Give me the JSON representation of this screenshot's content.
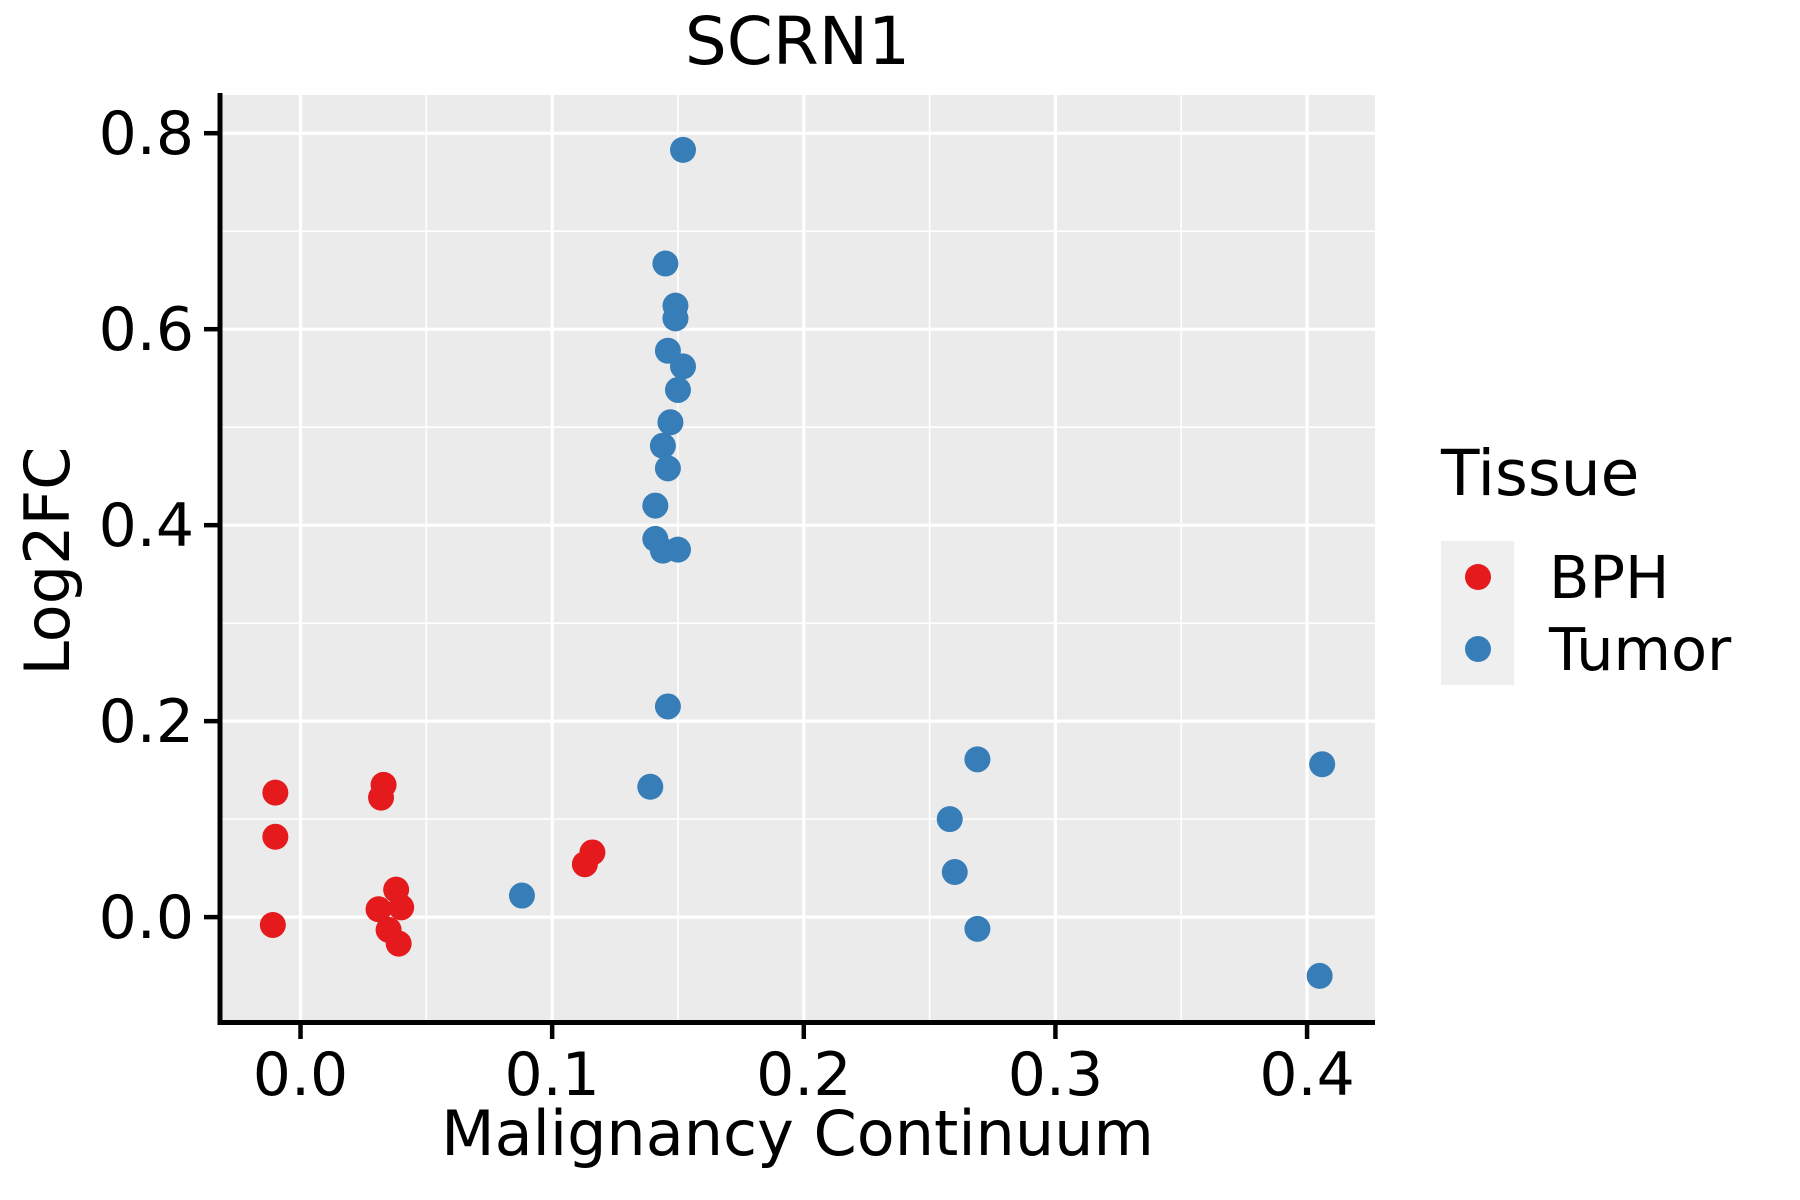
{
  "title": "SCRN1",
  "axes": {
    "x": {
      "label": "Malignancy Continuum",
      "tick_labels": [
        "0.0",
        "0.1",
        "0.2",
        "0.3",
        "0.4"
      ],
      "ticks": [
        0.0,
        0.1,
        0.2,
        0.3,
        0.4
      ],
      "minor_ticks": [
        0.05,
        0.15,
        0.25,
        0.35
      ]
    },
    "y": {
      "label": "Log2FC",
      "tick_labels": [
        "0.0",
        "0.2",
        "0.4",
        "0.6",
        "0.8"
      ],
      "ticks": [
        0.0,
        0.2,
        0.4,
        0.6,
        0.8
      ],
      "minor_ticks": [
        0.1,
        0.3,
        0.5,
        0.7
      ]
    }
  },
  "legend": {
    "title": "Tissue",
    "position": "right",
    "items": [
      {
        "label": "BPH",
        "color": "#E41A1C"
      },
      {
        "label": "Tumor",
        "color": "#377EB8"
      }
    ]
  },
  "style": {
    "panel_bg": "#EBEBEB",
    "grid_color": "#FFFFFF",
    "axis_color": "#000000",
    "legend_key_bg": "#EFEFEF",
    "point_radius": 13
  },
  "chart_data": {
    "type": "scatter",
    "title": "SCRN1",
    "xlabel": "Malignancy Continuum",
    "ylabel": "Log2FC",
    "xlim": [
      -0.032,
      0.427
    ],
    "ylim": [
      -0.105,
      0.839
    ],
    "grid": "major+minor",
    "legend_position": "right",
    "series": [
      {
        "name": "BPH",
        "color": "#E41A1C",
        "points": [
          [
            -0.01,
            0.127
          ],
          [
            -0.01,
            0.082
          ],
          [
            -0.011,
            -0.008
          ],
          [
            0.033,
            0.135
          ],
          [
            0.032,
            0.122
          ],
          [
            0.038,
            0.028
          ],
          [
            0.031,
            0.008
          ],
          [
            0.04,
            0.01
          ],
          [
            0.035,
            -0.013
          ],
          [
            0.039,
            -0.027
          ],
          [
            0.113,
            0.054
          ],
          [
            0.116,
            0.066
          ]
        ]
      },
      {
        "name": "Tumor",
        "color": "#377EB8",
        "points": [
          [
            0.152,
            0.783
          ],
          [
            0.145,
            0.667
          ],
          [
            0.149,
            0.624
          ],
          [
            0.149,
            0.611
          ],
          [
            0.146,
            0.578
          ],
          [
            0.152,
            0.562
          ],
          [
            0.15,
            0.538
          ],
          [
            0.147,
            0.505
          ],
          [
            0.144,
            0.481
          ],
          [
            0.146,
            0.458
          ],
          [
            0.141,
            0.42
          ],
          [
            0.141,
            0.386
          ],
          [
            0.144,
            0.374
          ],
          [
            0.15,
            0.375
          ],
          [
            0.146,
            0.215
          ],
          [
            0.139,
            0.133
          ],
          [
            0.088,
            0.022
          ],
          [
            0.269,
            0.161
          ],
          [
            0.258,
            0.1
          ],
          [
            0.26,
            0.046
          ],
          [
            0.269,
            -0.012
          ],
          [
            0.406,
            0.156
          ],
          [
            0.405,
            -0.06
          ]
        ]
      }
    ]
  }
}
